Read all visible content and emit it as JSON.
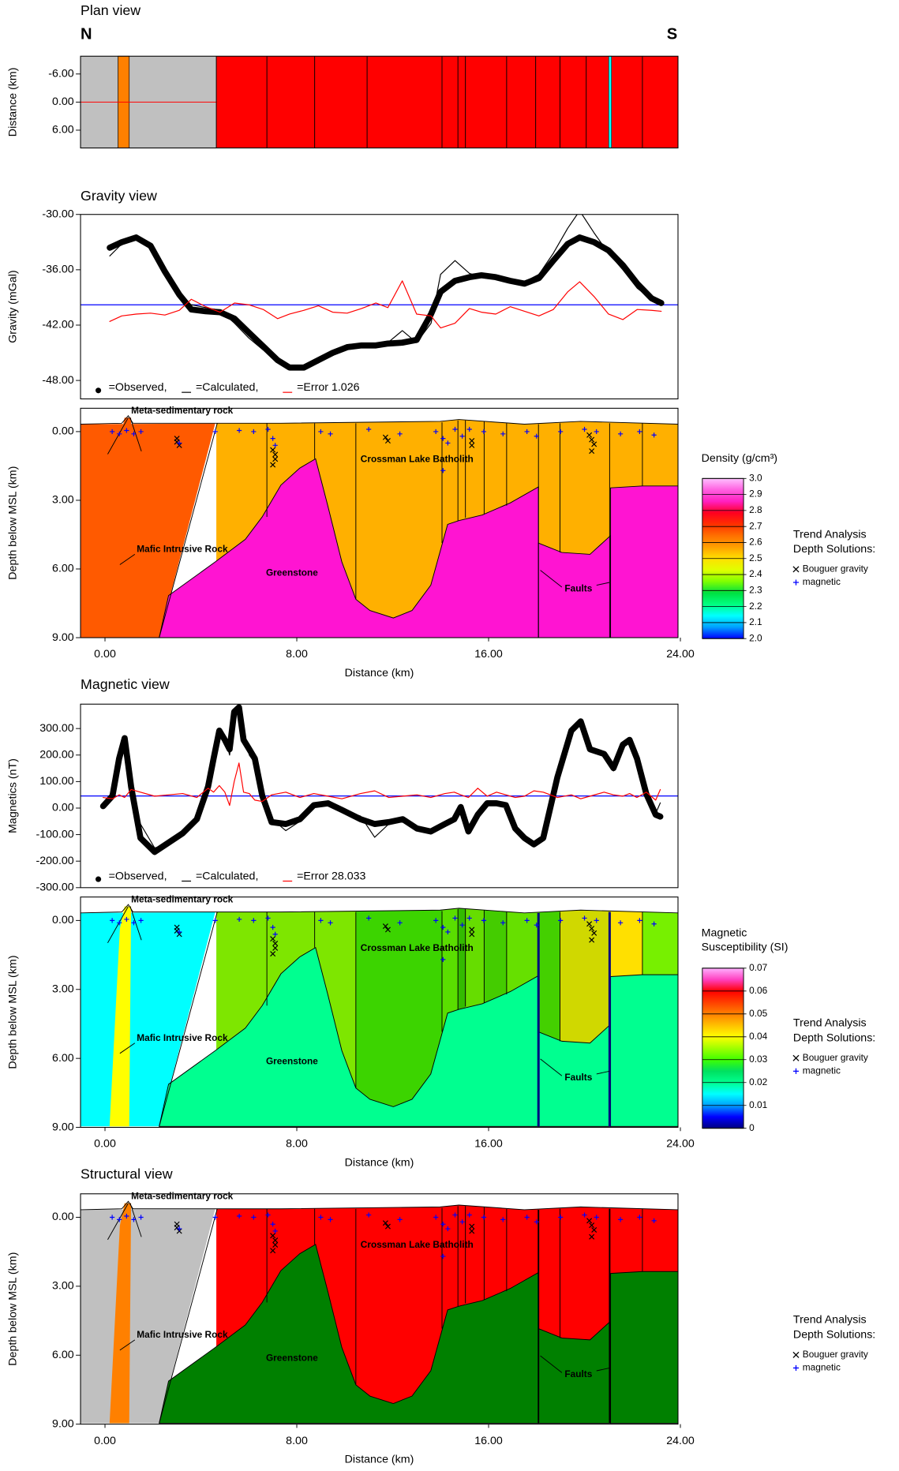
{
  "chart_data": [
    {
      "type": "plan",
      "title": "Plan view",
      "labels": [
        "N",
        "S"
      ],
      "ylabel": "Distance (km)",
      "xlim": [
        -1.02,
        23.9
      ],
      "ylim": [
        9.8,
        -9.8
      ],
      "yticks": [
        {
          "value": -6,
          "label": "-6.00"
        },
        {
          "value": 0,
          "label": "0.00"
        },
        {
          "value": 6,
          "label": "6.00"
        }
      ]
    },
    {
      "type": "line",
      "title": "Gravity view",
      "ylabel": "Gravity (mGal)",
      "xlim": [
        -1.02,
        23.9
      ],
      "ylim": [
        -50,
        -30
      ],
      "yticks": [
        {
          "value": -30,
          "label": "-30.00"
        },
        {
          "value": -36,
          "label": "-36.00"
        },
        {
          "value": -42,
          "label": "-42.00"
        },
        {
          "value": -48,
          "label": "-48.00"
        }
      ],
      "baseline": -39.8,
      "baseline_color": "#0000ff",
      "x": [
        0.2,
        0.7,
        1.3,
        1.9,
        2.5,
        3.1,
        3.6,
        4.2,
        4.8,
        5.4,
        6.0,
        6.6,
        7.2,
        7.7,
        8.3,
        8.9,
        9.5,
        10.1,
        10.7,
        11.3,
        11.8,
        12.4,
        13.0,
        13.6,
        14.0,
        14.6,
        15.2,
        15.7,
        16.3,
        16.9,
        17.5,
        18.1,
        18.7,
        19.3,
        19.8,
        20.4,
        21.0,
        21.6,
        22.2,
        22.8,
        23.2
      ],
      "series": [
        {
          "name": "=Observed,",
          "color": "#000000",
          "marker": "circle",
          "values": [
            -33.6,
            -33.0,
            -32.5,
            -33.4,
            -36.2,
            -38.7,
            -40.3,
            -40.5,
            -40.6,
            -41.3,
            -42.8,
            -44.3,
            -45.8,
            -46.6,
            -46.6,
            -45.8,
            -45.0,
            -44.4,
            -44.2,
            -44.2,
            -44.0,
            -43.9,
            -43.6,
            -40.8,
            -38.4,
            -37.2,
            -36.8,
            -36.6,
            -36.8,
            -37.2,
            -37.5,
            -36.9,
            -35.0,
            -33.2,
            -32.5,
            -33.0,
            -33.9,
            -35.5,
            -37.5,
            -39.1,
            -39.6
          ]
        },
        {
          "name": "=Calculated,",
          "color": "#000000",
          "values": [
            -34.5,
            -33.2,
            -32.4,
            -33.1,
            -36.0,
            -38.9,
            -39.8,
            -40.1,
            -40.4,
            -41.8,
            -43.4,
            -44.7,
            -45.5,
            -46.4,
            -46.6,
            -46.1,
            -44.9,
            -44.1,
            -44.0,
            -44.2,
            -43.9,
            -42.6,
            -43.9,
            -41.8,
            -36.5,
            -35.0,
            -36.4,
            -36.8,
            -36.6,
            -37.4,
            -37.3,
            -36.5,
            -34.2,
            -31.5,
            -29.6,
            -32.0,
            -34.2,
            -36.0,
            -38.0,
            -39.2,
            -39.6
          ]
        },
        {
          "name": "=Error 1.026",
          "color": "#ff0000",
          "values": [
            -41.6,
            -41.0,
            -40.8,
            -40.7,
            -40.9,
            -40.4,
            -39.2,
            -40.0,
            -40.6,
            -39.6,
            -39.8,
            -40.3,
            -41.3,
            -40.8,
            -40.4,
            -39.9,
            -40.6,
            -40.7,
            -40.2,
            -39.6,
            -40.1,
            -37.2,
            -40.8,
            -41.0,
            -42.3,
            -41.8,
            -40.2,
            -40.6,
            -40.8,
            -40.0,
            -40.5,
            -41.0,
            -40.3,
            -38.4,
            -37.3,
            -38.9,
            -40.8,
            -41.4,
            -40.3,
            -40.4,
            -40.5
          ]
        }
      ]
    },
    {
      "type": "section",
      "ylabel": "Depth below MSL (km)",
      "xlabel": "Distance (km)",
      "xlim": [
        -1.02,
        23.9
      ],
      "ylim": [
        9,
        -1.02
      ],
      "xticks": [
        {
          "value": 0,
          "label": "0.00"
        },
        {
          "value": 8,
          "label": "8.00"
        },
        {
          "value": 16,
          "label": "16.00"
        },
        {
          "value": 24,
          "label": "24.00"
        }
      ],
      "yticks": [
        {
          "value": 0,
          "label": "0.00"
        },
        {
          "value": 3,
          "label": "3.00"
        },
        {
          "value": 6,
          "label": "6.00"
        },
        {
          "value": 9,
          "label": "9.00"
        }
      ],
      "labels": [
        "Meta-sedimentary rock",
        "Mafic Intrusive Rock",
        "Greenstone",
        "Crossman Lake Batholith",
        "Faults"
      ],
      "colorbar": {
        "title": [
          "Density (g/cm³)"
        ],
        "ylim": [
          2,
          3
        ],
        "ticks": [
          {
            "value": 3,
            "label": "3.0"
          },
          2.9,
          2.8,
          2.7,
          2.6,
          2.5,
          2.4,
          2.3,
          2.2,
          2.1,
          {
            "value": 2,
            "label": "2.0"
          }
        ],
        "colors": [
          "#0000ff",
          "#00a0ff",
          "#00ffff",
          "#00ff80",
          "#00e040",
          "#80ff00",
          "#e0ff00",
          "#ffe000",
          "#ffa000",
          "#ff7000",
          "#ff3000",
          "#ff0020",
          "#ff20c0",
          "#ff60e0",
          "#ffc0ff"
        ]
      }
    },
    {
      "type": "line",
      "title": "Magnetic view",
      "ylabel": "Magnetics (nT)",
      "xlim": [
        -1.02,
        23.9
      ],
      "ylim": [
        -300,
        392
      ],
      "yticks": [
        {
          "value": 300,
          "label": "300.00"
        },
        {
          "value": 200,
          "label": "200.00"
        },
        {
          "value": 100,
          "label": "100.00"
        },
        {
          "value": 0,
          "label": "0.00"
        },
        {
          "value": -100,
          "label": "-100.00"
        },
        {
          "value": -200,
          "label": "-200.00"
        },
        {
          "value": -300,
          "label": "-300.00"
        }
      ],
      "baseline": 45.7,
      "baseline_color": "#0000ff",
      "x": [
        -0.08,
        0.31,
        0.59,
        0.82,
        1.09,
        1.48,
        2.07,
        2.66,
        3.24,
        3.83,
        4.3,
        4.53,
        4.77,
        5.0,
        5.2,
        5.39,
        5.59,
        5.78,
        6.02,
        6.25,
        6.56,
        6.95,
        7.54,
        8.13,
        8.71,
        9.3,
        9.88,
        10.66,
        11.25,
        11.84,
        12.42,
        13.01,
        13.59,
        14.18,
        14.57,
        14.84,
        15.16,
        15.55,
        15.94,
        16.33,
        16.72,
        17.11,
        17.5,
        17.89,
        18.28,
        18.87,
        19.45,
        19.84,
        20.23,
        20.82,
        21.21,
        21.6,
        21.88,
        22.19,
        22.58,
        22.97,
        23.16
      ],
      "series": [
        {
          "name": "=Observed,",
          "color": "#000000",
          "marker": "circle",
          "values": [
            7,
            46,
            187,
            264,
            81,
            -113,
            -165,
            -130,
            -95,
            -42,
            81,
            187,
            292,
            257,
            222,
            363,
            380,
            257,
            222,
            187,
            46,
            -53,
            -60,
            -42,
            11,
            18,
            -7,
            -42,
            -60,
            -53,
            -42,
            -77,
            -88,
            -60,
            -42,
            4,
            -88,
            -25,
            18,
            18,
            11,
            -77,
            -113,
            -137,
            -113,
            116,
            292,
            327,
            222,
            204,
            151,
            239,
            257,
            187,
            53,
            -25,
            -32
          ]
        },
        {
          "name": "=Calculated,",
          "color": "#000000",
          "values": [
            10,
            40,
            200,
            250,
            60,
            -60,
            -150,
            -140,
            -100,
            -50,
            60,
            170,
            280,
            270,
            200,
            340,
            385,
            300,
            200,
            170,
            40,
            -40,
            -85,
            -50,
            5,
            15,
            -10,
            -30,
            -110,
            -60,
            -50,
            -70,
            -80,
            -65,
            -35,
            -5,
            -75,
            -30,
            10,
            20,
            0,
            -60,
            -120,
            -130,
            -110,
            110,
            300,
            330,
            230,
            210,
            140,
            230,
            255,
            190,
            60,
            -20,
            20
          ]
        },
        {
          "name": "=Error 28.033",
          "color": "#ff0000",
          "values": [
            40,
            35,
            50,
            40,
            70,
            60,
            45,
            50,
            55,
            40,
            75,
            60,
            85,
            60,
            10,
            100,
            170,
            60,
            55,
            30,
            25,
            50,
            60,
            40,
            55,
            45,
            35,
            55,
            65,
            40,
            45,
            50,
            40,
            55,
            60,
            50,
            40,
            75,
            45,
            60,
            50,
            40,
            45,
            65,
            60,
            40,
            50,
            35,
            45,
            60,
            50,
            45,
            55,
            40,
            60,
            30,
            70
          ]
        }
      ]
    },
    {
      "type": "section",
      "ylabel": "Depth below MSL (km)",
      "xlabel": "Distance (km)",
      "xlim": [
        -1.02,
        23.9
      ],
      "ylim": [
        9,
        -1.02
      ],
      "xticks": [
        {
          "value": 0,
          "label": "0.00"
        },
        {
          "value": 8,
          "label": "8.00"
        },
        {
          "value": 16,
          "label": "16.00"
        },
        {
          "value": 24,
          "label": "24.00"
        }
      ],
      "yticks": [
        {
          "value": 0,
          "label": "0.00"
        },
        {
          "value": 3,
          "label": "3.00"
        },
        {
          "value": 6,
          "label": "6.00"
        },
        {
          "value": 9,
          "label": "9.00"
        }
      ],
      "labels": [
        "Meta-sedimentary rock",
        "Mafic Intrusive Rock",
        "Greenstone",
        "Crossman Lake Batholith",
        "Faults"
      ],
      "colorbar": {
        "title": [
          "Magnetic",
          "Susceptibility (SI)"
        ],
        "ylim": [
          0,
          0.07
        ],
        "ticks": [
          0.07,
          0.06,
          0.05,
          0.04,
          0.03,
          0.02,
          0.01,
          0
        ],
        "colors": [
          "#000080",
          "#0000ff",
          "#00a0ff",
          "#00ffff",
          "#00ff90",
          "#00e060",
          "#40ff00",
          "#a0ff00",
          "#ffff00",
          "#ffc000",
          "#ff8000",
          "#ff4000",
          "#ff0000",
          "#ff40c0",
          "#ffb0ff"
        ]
      }
    },
    {
      "type": "section",
      "title": "Structural view",
      "ylabel": "Depth below MSL (km)",
      "xlabel": "Distance (km)",
      "xlim": [
        -1.02,
        23.9
      ],
      "ylim": [
        9,
        -1.02
      ],
      "xticks": [
        {
          "value": 0,
          "label": "0.00"
        },
        {
          "value": 8,
          "label": "8.00"
        },
        {
          "value": 16,
          "label": "16.00"
        },
        {
          "value": 24,
          "label": "24.00"
        }
      ],
      "yticks": [
        {
          "value": 0,
          "label": "0.00"
        },
        {
          "value": 3,
          "label": "3.00"
        },
        {
          "value": 6,
          "label": "6.00"
        },
        {
          "value": 9,
          "label": "9.00"
        }
      ],
      "labels": [
        "Meta-sedimentary rock",
        "Mafic Intrusive Rock",
        "Greenstone",
        "Crossman Lake Batholith",
        "Faults"
      ]
    }
  ],
  "depth_solutions": {
    "title": [
      "Trend Analysis",
      "Depth Solutions:"
    ],
    "series": [
      {
        "name": "Bouguer gravity",
        "marker": "x",
        "color": "#000000",
        "x": [
          3.0,
          3.0,
          3.1,
          7.0,
          7.1,
          7.1,
          7.0,
          11.7,
          11.8,
          15.3,
          15.3,
          20.2,
          20.3,
          20.4,
          20.3
        ],
        "depth": [
          0.3,
          0.45,
          0.6,
          0.8,
          1.0,
          1.2,
          1.45,
          0.25,
          0.4,
          0.4,
          0.6,
          0.15,
          0.35,
          0.55,
          0.85
        ]
      },
      {
        "name": "magnetic",
        "marker": "+",
        "color": "#0000ff",
        "x": [
          0.3,
          0.6,
          0.9,
          1.2,
          1.5,
          3.1,
          4.6,
          5.6,
          6.2,
          6.8,
          7.0,
          7.1,
          9.0,
          9.4,
          11.0,
          12.3,
          13.8,
          14.1,
          14.3,
          14.6,
          14.9,
          15.2,
          15.8,
          16.6,
          17.6,
          18.0,
          19.0,
          20.0,
          20.5,
          21.5,
          22.3,
          22.9,
          14.1
        ],
        "depth": [
          0.0,
          0.1,
          -0.05,
          0.1,
          0.0,
          0.5,
          0.0,
          -0.05,
          0.0,
          -0.1,
          0.3,
          0.6,
          0.0,
          0.1,
          -0.1,
          0.1,
          0.0,
          0.3,
          0.5,
          -0.1,
          0.2,
          -0.1,
          0.0,
          0.1,
          0.0,
          0.2,
          0.0,
          -0.1,
          0.0,
          0.1,
          0.0,
          0.15,
          1.7
        ]
      }
    ]
  }
}
